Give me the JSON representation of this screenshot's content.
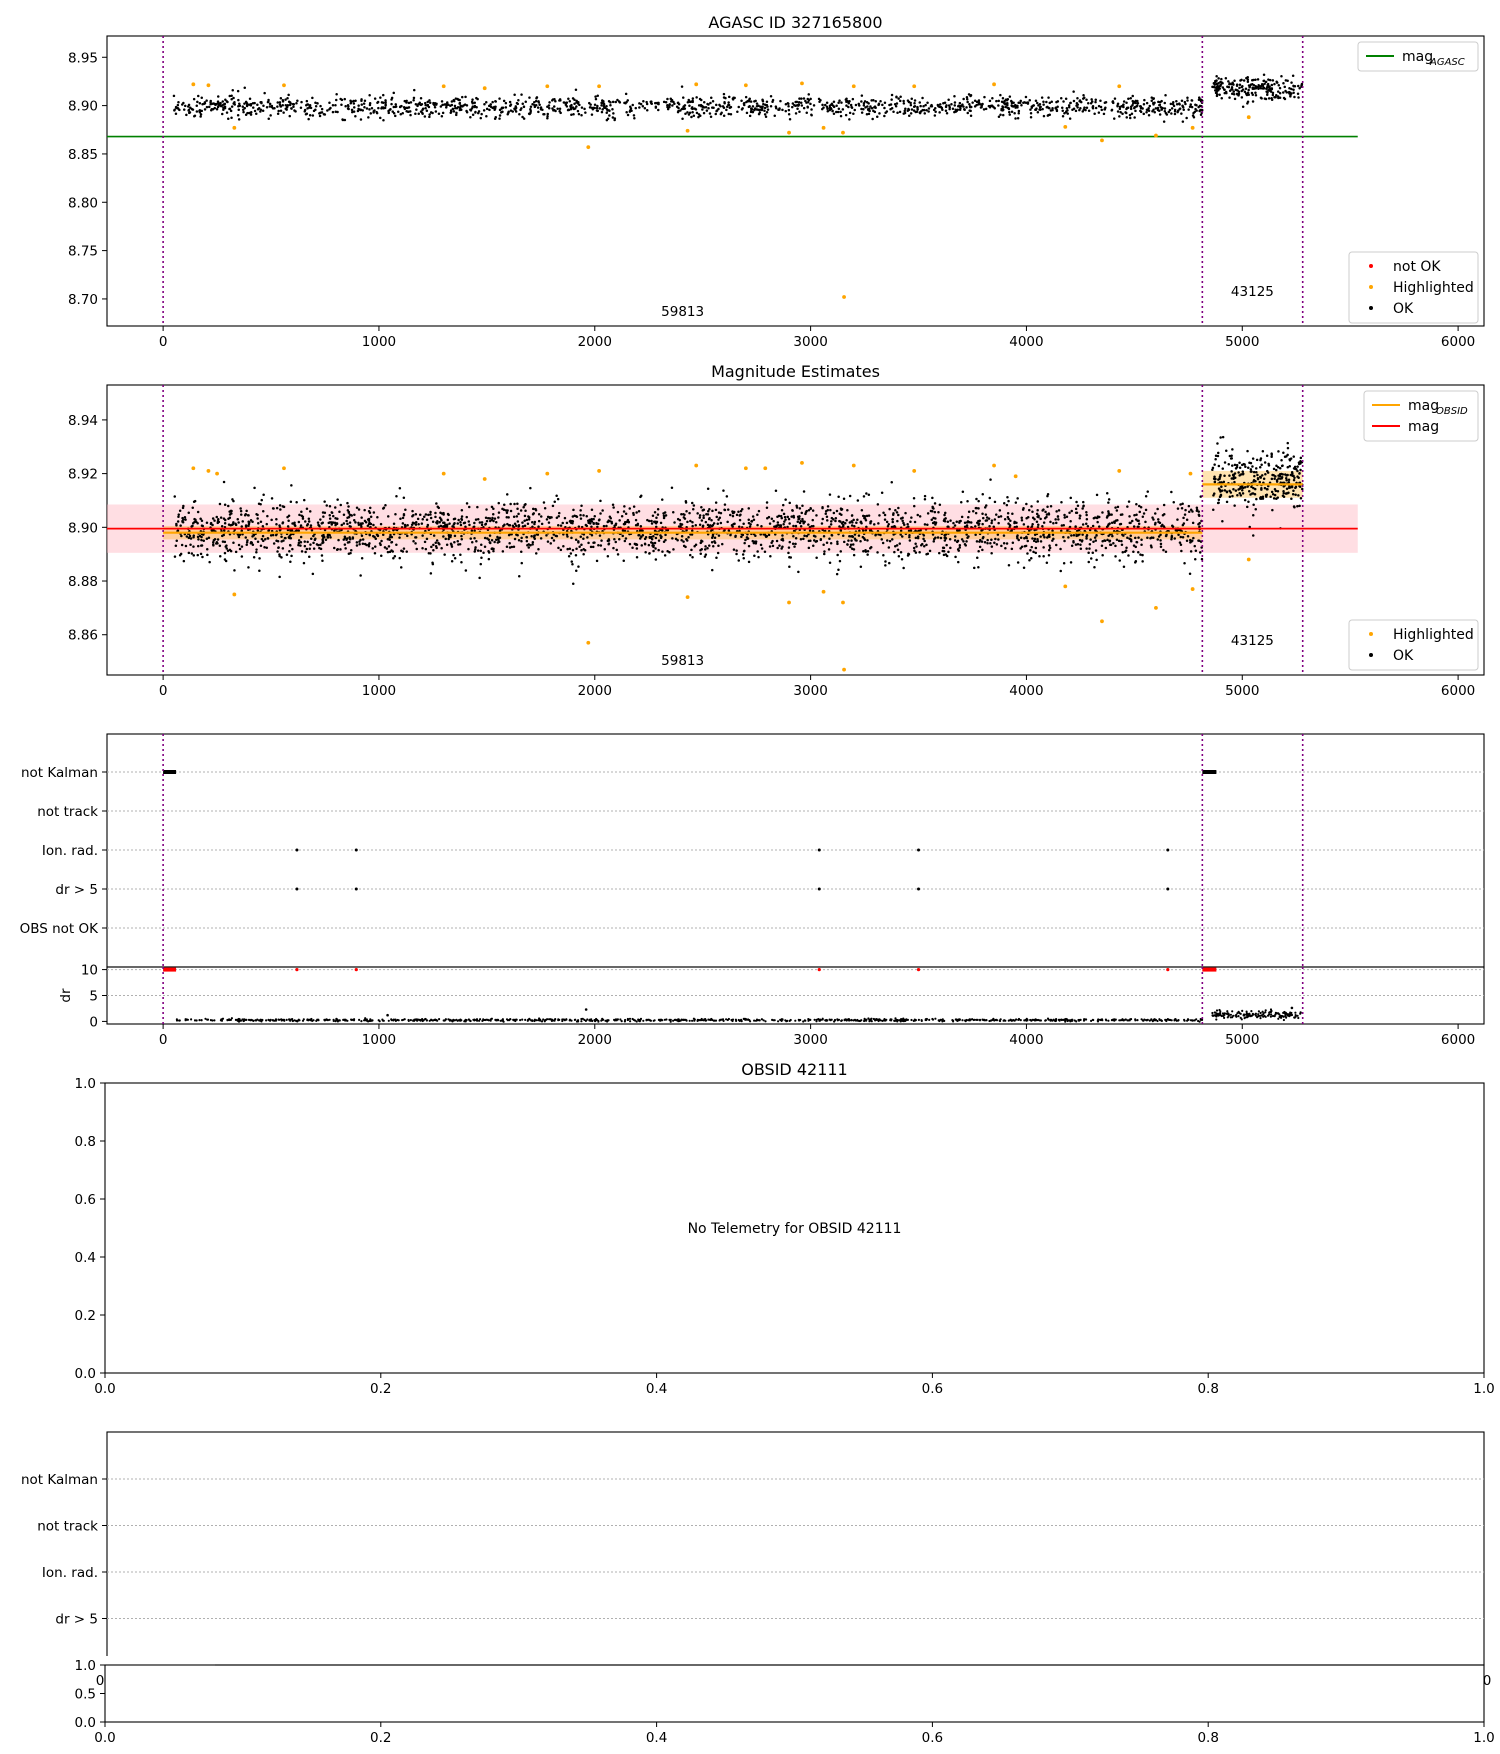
{
  "colors": {
    "ok": "#000000",
    "highlighted": "#ffa500",
    "not_ok": "#ff0000",
    "mag_agasc": "#008000",
    "mag_obsid": "#ffa500",
    "mag": "#ff0000",
    "band": "#ffb6c1",
    "obs_boundary": "#800080",
    "grid": "#b0b0b0"
  },
  "chart_data": [
    {
      "id": "agasc",
      "type": "scatter",
      "title": "AGASC ID 327165800",
      "xlim": [
        -260,
        6120
      ],
      "ylim": [
        8.672,
        8.972
      ],
      "xticks": [
        0,
        1000,
        2000,
        3000,
        4000,
        5000,
        6000
      ],
      "yticks": [
        8.7,
        8.75,
        8.8,
        8.85,
        8.9,
        8.95
      ],
      "ytick_labels": [
        "8.70",
        "8.75",
        "8.80",
        "8.85",
        "8.90",
        "8.95"
      ],
      "obs_boundaries": [
        0,
        4815,
        5280
      ],
      "obsid_labels": [
        {
          "x": 2407,
          "text": "59813"
        },
        {
          "x": 5047,
          "text": "43125"
        }
      ],
      "mag_agasc": 8.868,
      "line_xrange": [
        -260,
        5535
      ],
      "segments": [
        {
          "x0": 50,
          "x1": 4815,
          "mean": 8.899,
          "noise": 0.0055,
          "count": 1500
        },
        {
          "x0": 4860,
          "x1": 5280,
          "mean": 8.918,
          "noise": 0.006,
          "count": 220
        }
      ],
      "highlighted_points": [
        [
          140,
          8.922
        ],
        [
          210,
          8.921
        ],
        [
          330,
          8.877
        ],
        [
          560,
          8.921
        ],
        [
          1300,
          8.92
        ],
        [
          1490,
          8.918
        ],
        [
          1780,
          8.92
        ],
        [
          1970,
          8.857
        ],
        [
          2020,
          8.92
        ],
        [
          2430,
          8.874
        ],
        [
          2470,
          8.922
        ],
        [
          2700,
          8.921
        ],
        [
          2900,
          8.872
        ],
        [
          2960,
          8.923
        ],
        [
          3060,
          8.877
        ],
        [
          3150,
          8.872
        ],
        [
          3155,
          8.702
        ],
        [
          3200,
          8.92
        ],
        [
          3480,
          8.92
        ],
        [
          3850,
          8.922
        ],
        [
          4180,
          8.878
        ],
        [
          4350,
          8.864
        ],
        [
          4430,
          8.92
        ],
        [
          4600,
          8.869
        ],
        [
          4770,
          8.877
        ],
        [
          5030,
          8.888
        ]
      ],
      "legends": [
        {
          "entries": [
            {
              "label": "mag",
              "sub": "AGASC",
              "kind": "line",
              "color_key": "mag_agasc"
            }
          ]
        },
        {
          "entries": [
            {
              "label": "not OK",
              "kind": "dot",
              "color_key": "not_ok"
            },
            {
              "label": "Highlighted",
              "kind": "dot",
              "color_key": "highlighted"
            },
            {
              "label": "OK",
              "kind": "dot",
              "color_key": "ok"
            }
          ]
        }
      ]
    },
    {
      "id": "estimates",
      "type": "scatter",
      "title": "Magnitude Estimates",
      "xlim": [
        -260,
        6120
      ],
      "ylim": [
        8.845,
        8.953
      ],
      "xticks": [
        0,
        1000,
        2000,
        3000,
        4000,
        5000,
        6000
      ],
      "yticks": [
        8.86,
        8.88,
        8.9,
        8.92,
        8.94
      ],
      "ytick_labels": [
        "8.86",
        "8.88",
        "8.90",
        "8.92",
        "8.94"
      ],
      "obs_boundaries": [
        0,
        4815,
        5280
      ],
      "obsid_labels": [
        {
          "x": 2407,
          "text": "59813"
        },
        {
          "x": 5047,
          "text": "43125"
        }
      ],
      "mag": 8.8995,
      "mag_band": [
        8.8905,
        8.9085
      ],
      "line_xrange": [
        -260,
        5535
      ],
      "mag_obsid": [
        {
          "x0": 0,
          "x1": 4815,
          "value": 8.898,
          "band": [
            8.8955,
            8.9005
          ]
        },
        {
          "x0": 4815,
          "x1": 5280,
          "value": 8.916,
          "band": [
            8.911,
            8.921
          ]
        }
      ],
      "segments": [
        {
          "x0": 50,
          "x1": 4815,
          "mean": 8.899,
          "noise": 0.0055,
          "count": 2600
        },
        {
          "x0": 4860,
          "x1": 5280,
          "mean": 8.918,
          "noise": 0.006,
          "count": 320
        }
      ],
      "highlighted_points": [
        [
          140,
          8.922
        ],
        [
          210,
          8.921
        ],
        [
          250,
          8.92
        ],
        [
          330,
          8.875
        ],
        [
          560,
          8.922
        ],
        [
          1300,
          8.92
        ],
        [
          1490,
          8.918
        ],
        [
          1780,
          8.92
        ],
        [
          1970,
          8.857
        ],
        [
          2020,
          8.921
        ],
        [
          2430,
          8.874
        ],
        [
          2470,
          8.923
        ],
        [
          2700,
          8.922
        ],
        [
          2790,
          8.922
        ],
        [
          2900,
          8.872
        ],
        [
          2960,
          8.924
        ],
        [
          3060,
          8.876
        ],
        [
          3150,
          8.872
        ],
        [
          3155,
          8.847
        ],
        [
          3200,
          8.923
        ],
        [
          3480,
          8.921
        ],
        [
          3850,
          8.923
        ],
        [
          3950,
          8.919
        ],
        [
          4180,
          8.878
        ],
        [
          4350,
          8.865
        ],
        [
          4430,
          8.921
        ],
        [
          4600,
          8.87
        ],
        [
          4760,
          8.92
        ],
        [
          4770,
          8.877
        ],
        [
          5030,
          8.888
        ]
      ],
      "legends": [
        {
          "entries": [
            {
              "label": "mag",
              "sub": "OBSID",
              "kind": "line",
              "color_key": "mag_obsid"
            },
            {
              "label": "mag",
              "kind": "line",
              "color_key": "mag"
            }
          ]
        },
        {
          "entries": [
            {
              "label": "Highlighted",
              "kind": "dot",
              "color_key": "highlighted"
            },
            {
              "label": "OK",
              "kind": "dot",
              "color_key": "ok"
            }
          ]
        }
      ]
    },
    {
      "id": "flags",
      "type": "scatter",
      "title": "",
      "xlim": [
        -260,
        6120
      ],
      "categories": [
        "not Kalman",
        "not track",
        "Ion. rad.",
        "dr > 5",
        "OBS not OK"
      ],
      "obs_boundaries": [
        0,
        4815,
        5280
      ],
      "flag_points": {
        "not Kalman": {
          "ranges": [
            [
              0,
              60
            ],
            [
              4815,
              4880
            ]
          ]
        },
        "Ion. rad.": {
          "x": [
            620,
            895,
            3040,
            3500,
            4655
          ]
        },
        "dr > 5": {
          "x": [
            620,
            895,
            3040,
            3500,
            4655
          ]
        }
      }
    },
    {
      "id": "dr",
      "type": "scatter",
      "title": "",
      "xlim": [
        -260,
        6120
      ],
      "ylim": [
        -0.5,
        10.5
      ],
      "ylabel": "dr",
      "yticks": [
        0,
        5,
        10
      ],
      "ytick_labels": [
        "0",
        "5",
        "10"
      ],
      "xticks": [
        0,
        1000,
        2000,
        3000,
        4000,
        5000,
        6000
      ],
      "obs_boundaries": [
        0,
        4815,
        5280
      ],
      "red_ranges": [
        [
          0,
          60
        ],
        [
          4815,
          4880
        ]
      ],
      "red_points": [
        620,
        895,
        3040,
        3500,
        4655
      ],
      "segments": [
        {
          "x0": 50,
          "x1": 4815,
          "mean": 0.25,
          "noise": 0.12,
          "count": 900
        },
        {
          "x0": 4860,
          "x1": 5280,
          "mean": 1.3,
          "noise": 0.35,
          "count": 160
        }
      ],
      "outliers": [
        [
          1040,
          1.2
        ],
        [
          1960,
          2.3
        ],
        [
          5230,
          2.6
        ]
      ]
    },
    {
      "id": "obsid",
      "type": "scatter",
      "title": "OBSID 42111",
      "xlim": [
        0,
        1
      ],
      "ylim": [
        0,
        1
      ],
      "xticks": [
        0.0,
        0.2,
        0.4,
        0.6,
        0.8,
        1.0
      ],
      "xtick_labels": [
        "0.0",
        "0.2",
        "0.4",
        "0.6",
        "0.8",
        "1.0"
      ],
      "yticks": [
        0.0,
        0.2,
        0.4,
        0.6,
        0.8,
        1.0
      ],
      "ytick_labels": [
        "0.0",
        "0.2",
        "0.4",
        "0.6",
        "0.8",
        "1.0"
      ],
      "annotation": "No Telemetry for OBSID 42111"
    },
    {
      "id": "flags2",
      "type": "scatter",
      "title": "",
      "xlim": [
        0,
        1
      ],
      "categories": [
        "not Kalman",
        "not track",
        "Ion. rad.",
        "dr > 5"
      ],
      "edge_xtick_labels": [
        "0",
        "0"
      ]
    },
    {
      "id": "bottom",
      "type": "scatter",
      "title": "",
      "xlim": [
        0,
        1
      ],
      "ylim": [
        0,
        1
      ],
      "xticks": [
        0.0,
        0.2,
        0.4,
        0.6,
        0.8,
        1.0
      ],
      "xtick_labels": [
        "0.0",
        "0.2",
        "0.4",
        "0.6",
        "0.8",
        "1.0"
      ],
      "yticks": [
        0.0,
        0.5,
        1.0
      ],
      "ytick_labels": [
        "0.0",
        "0.5",
        "1.0"
      ]
    }
  ]
}
